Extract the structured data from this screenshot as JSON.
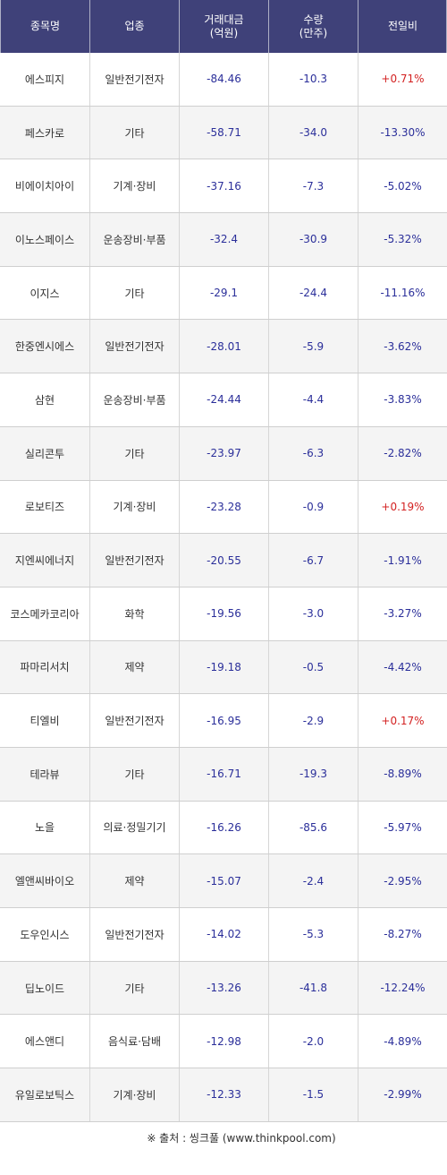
{
  "header": {
    "col_name": "종목명",
    "col_sector": "업종",
    "col_amount": "거래대금\n(억원)",
    "col_volume": "수량\n(만주)",
    "col_change": "전일비"
  },
  "rows": [
    {
      "name": "에스피지",
      "sector": "일반전기전자",
      "amount": "-84.46",
      "volume": "-10.3",
      "change": "+0.71%"
    },
    {
      "name": "페스카로",
      "sector": "기타",
      "amount": "-58.71",
      "volume": "-34.0",
      "change": "-13.30%"
    },
    {
      "name": "비에이치아이",
      "sector": "기계·장비",
      "amount": "-37.16",
      "volume": "-7.3",
      "change": "-5.02%"
    },
    {
      "name": "이노스페이스",
      "sector": "운송장비·부품",
      "amount": "-32.4",
      "volume": "-30.9",
      "change": "-5.32%"
    },
    {
      "name": "이지스",
      "sector": "기타",
      "amount": "-29.1",
      "volume": "-24.4",
      "change": "-11.16%"
    },
    {
      "name": "한중엔시에스",
      "sector": "일반전기전자",
      "amount": "-28.01",
      "volume": "-5.9",
      "change": "-3.62%"
    },
    {
      "name": "삼현",
      "sector": "운송장비·부품",
      "amount": "-24.44",
      "volume": "-4.4",
      "change": "-3.83%"
    },
    {
      "name": "실리콘투",
      "sector": "기타",
      "amount": "-23.97",
      "volume": "-6.3",
      "change": "-2.82%"
    },
    {
      "name": "로보티즈",
      "sector": "기계·장비",
      "amount": "-23.28",
      "volume": "-0.9",
      "change": "+0.19%"
    },
    {
      "name": "지엔씨에너지",
      "sector": "일반전기전자",
      "amount": "-20.55",
      "volume": "-6.7",
      "change": "-1.91%"
    },
    {
      "name": "코스메카코리아",
      "sector": "화학",
      "amount": "-19.56",
      "volume": "-3.0",
      "change": "-3.27%"
    },
    {
      "name": "파마리서치",
      "sector": "제약",
      "amount": "-19.18",
      "volume": "-0.5",
      "change": "-4.42%"
    },
    {
      "name": "티엘비",
      "sector": "일반전기전자",
      "amount": "-16.95",
      "volume": "-2.9",
      "change": "+0.17%"
    },
    {
      "name": "테라뷰",
      "sector": "기타",
      "amount": "-16.71",
      "volume": "-19.3",
      "change": "-8.89%"
    },
    {
      "name": "노을",
      "sector": "의료·정밀기기",
      "amount": "-16.26",
      "volume": "-85.6",
      "change": "-5.97%"
    },
    {
      "name": "엘앤씨바이오",
      "sector": "제약",
      "amount": "-15.07",
      "volume": "-2.4",
      "change": "-2.95%"
    },
    {
      "name": "도우인시스",
      "sector": "일반전기전자",
      "amount": "-14.02",
      "volume": "-5.3",
      "change": "-8.27%"
    },
    {
      "name": "딥노이드",
      "sector": "기타",
      "amount": "-13.26",
      "volume": "-41.8",
      "change": "-12.24%"
    },
    {
      "name": "에스앤디",
      "sector": "음식료·담배",
      "amount": "-12.98",
      "volume": "-2.0",
      "change": "-4.89%"
    },
    {
      "name": "유일로보틱스",
      "sector": "기계·장비",
      "amount": "-12.33",
      "volume": "-1.5",
      "change": "-2.99%"
    }
  ],
  "footer": {
    "source": "※ 출처 : 씽크풀 (www.thinkpool.com)"
  },
  "colors": {
    "header_bg": "#3f4179",
    "positive": "#d32222",
    "negative": "#2b2f9a"
  }
}
